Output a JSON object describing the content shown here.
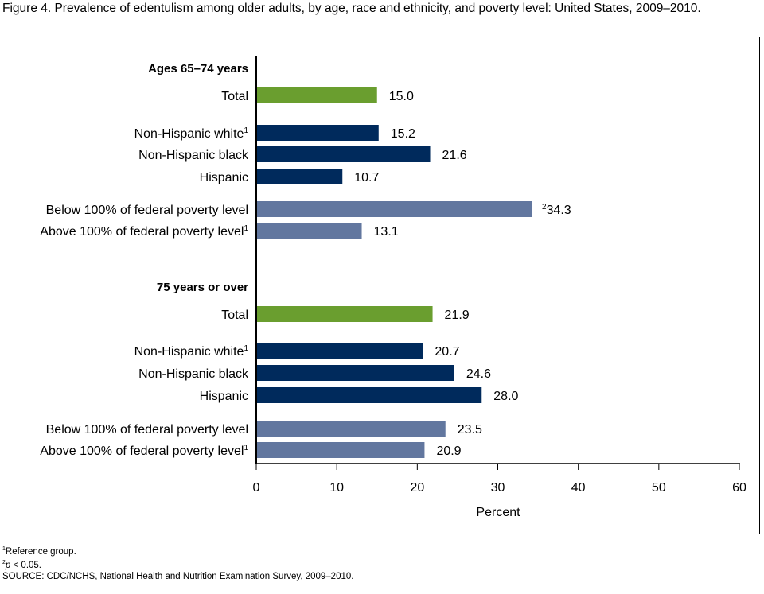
{
  "title": "Figure 4. Prevalence of edentulism among older adults, by age, race and ethnicity, and poverty level: United States, 2009–2010.",
  "colors": {
    "total": "#6a9e2f",
    "race": "#002a5c",
    "poverty": "#62779f"
  },
  "chart_data": {
    "type": "bar",
    "orientation": "horizontal",
    "xlabel": "Percent",
    "xlim": [
      0,
      60
    ],
    "xticks": [
      0,
      10,
      20,
      30,
      40,
      50,
      60
    ],
    "groups": [
      {
        "name": "Ages 65–74 years",
        "bars": [
          {
            "label": "Total",
            "sup": "",
            "value": 15.0,
            "value_label": "15.0",
            "value_sup": "",
            "kind": "total"
          },
          {
            "label": "Non-Hispanic white",
            "sup": "1",
            "value": 15.2,
            "value_label": "15.2",
            "value_sup": "",
            "kind": "race"
          },
          {
            "label": "Non-Hispanic black",
            "sup": "",
            "value": 21.6,
            "value_label": "21.6",
            "value_sup": "",
            "kind": "race"
          },
          {
            "label": "Hispanic",
            "sup": "",
            "value": 10.7,
            "value_label": "10.7",
            "value_sup": "",
            "kind": "race"
          },
          {
            "label": "Below 100% of federal poverty level",
            "sup": "",
            "value": 34.3,
            "value_label": "34.3",
            "value_sup": "2",
            "kind": "poverty"
          },
          {
            "label": "Above 100% of federal poverty level",
            "sup": "1",
            "value": 13.1,
            "value_label": "13.1",
            "value_sup": "",
            "kind": "poverty"
          }
        ]
      },
      {
        "name": "75 years or over",
        "bars": [
          {
            "label": "Total",
            "sup": "",
            "value": 21.9,
            "value_label": "21.9",
            "value_sup": "",
            "kind": "total"
          },
          {
            "label": "Non-Hispanic white",
            "sup": "1",
            "value": 20.7,
            "value_label": "20.7",
            "value_sup": "",
            "kind": "race"
          },
          {
            "label": "Non-Hispanic black",
            "sup": "",
            "value": 24.6,
            "value_label": "24.6",
            "value_sup": "",
            "kind": "race"
          },
          {
            "label": "Hispanic",
            "sup": "",
            "value": 28.0,
            "value_label": "28.0",
            "value_sup": "",
            "kind": "race"
          },
          {
            "label": "Below 100% of federal poverty level",
            "sup": "",
            "value": 23.5,
            "value_label": "23.5",
            "value_sup": "",
            "kind": "poverty"
          },
          {
            "label": "Above 100% of federal poverty level",
            "sup": "1",
            "value": 20.9,
            "value_label": "20.9",
            "value_sup": "",
            "kind": "poverty"
          }
        ]
      }
    ]
  },
  "notes": {
    "n1_sup": "1",
    "n1": "Reference group.",
    "n2_sup": "2",
    "n2_p": "p",
    "n2": " < 0.05.",
    "source": "SOURCE: CDC/NCHS, National Health and Nutrition Examination Survey, 2009–2010."
  }
}
